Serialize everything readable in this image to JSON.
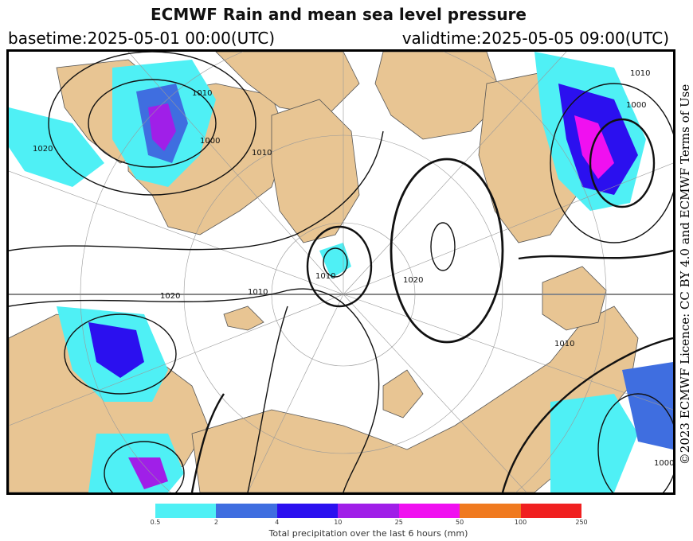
{
  "header": {
    "title": "ECMWF Rain and mean sea level pressure",
    "basetime": "basetime:2025-05-01 00:00(UTC)",
    "validtime": "validtime:2025-05-05 09:00(UTC)"
  },
  "licence": "©2023 ECMWF Licence: CC BY 4.0 and ECMWF Terms of Use",
  "isobar_labels": [
    "1010",
    "1000",
    "1010",
    "1020",
    "1010",
    "1010",
    "1020",
    "1000",
    "1010",
    "1000",
    "1020",
    "1010"
  ],
  "legend": {
    "caption": "Total precipitation over the last 6 hours (mm)",
    "ticks": [
      "0.5",
      "2",
      "4",
      "10",
      "25",
      "50",
      "100",
      "250"
    ],
    "colors": [
      "#4ff0f5",
      "#3f6ee0",
      "#2b10ef",
      "#a01fe8",
      "#f010f0",
      "#f07a1f",
      "#f02020"
    ]
  },
  "colors": {
    "land": "#e8c593",
    "ocean": "#ffffff",
    "frame": "#000000"
  }
}
